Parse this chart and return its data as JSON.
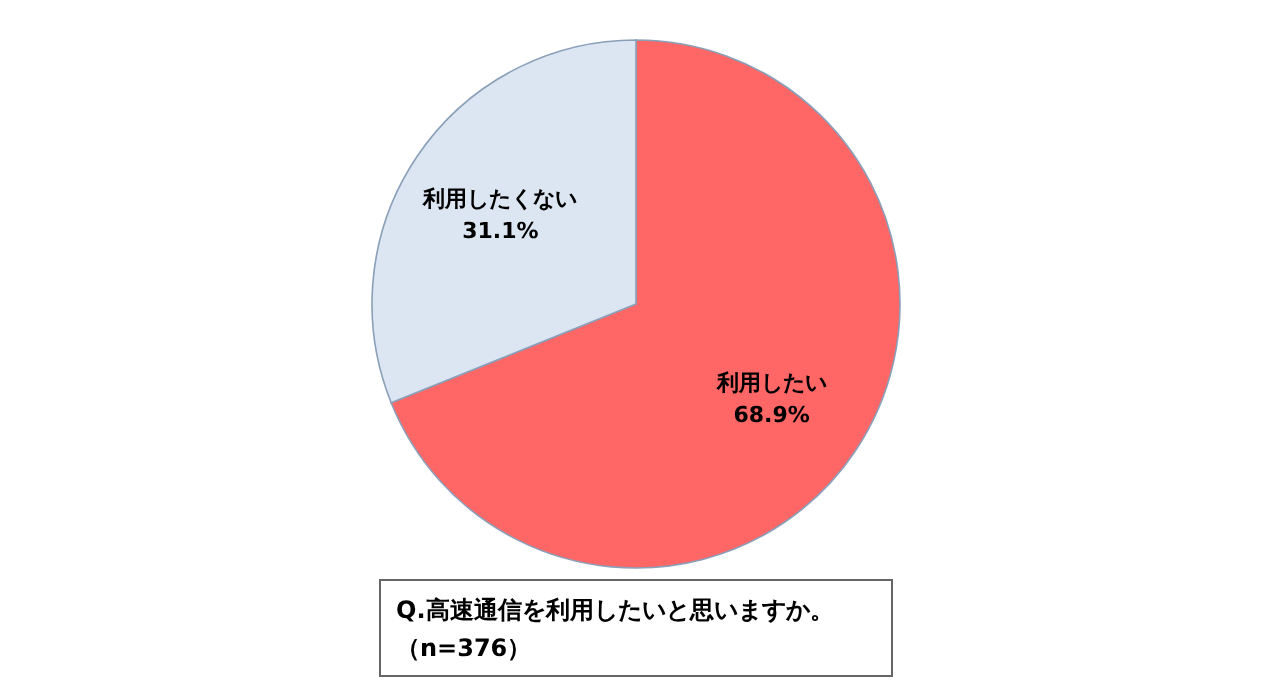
{
  "chart_data": {
    "type": "pie",
    "title": "Q.高速通信を利用したいと思いますか。",
    "subtitle": "（n=376）",
    "categories": [
      "利用したい",
      "利用したくない"
    ],
    "values": [
      68.9,
      31.1
    ],
    "value_labels": [
      "68.9%",
      "31.1%"
    ],
    "colors": [
      "#ff6666",
      "#dce6f2"
    ]
  }
}
